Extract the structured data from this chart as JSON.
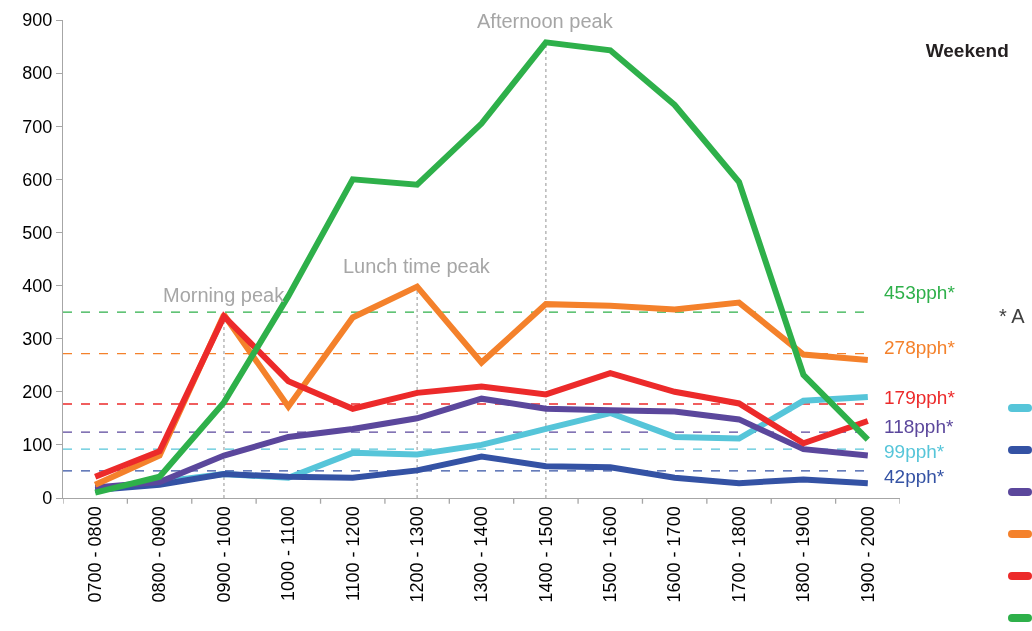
{
  "chart_data": {
    "type": "line",
    "title": "Weekend",
    "categories": [
      "0700 - 0800",
      "0800 - 0900",
      "0900 - 1000",
      "1000 - 1100",
      "1100 - 1200",
      "1200 - 1300",
      "1300 - 1400",
      "1400 - 1500",
      "1500 - 1600",
      "1600 - 1700",
      "1700 - 1800",
      "1800 - 1900",
      "1900 - 2000"
    ],
    "series": [
      {
        "color": "#56c5d9",
        "values": [
          15,
          30,
          45,
          38,
          85,
          82,
          100,
          130,
          160,
          115,
          112,
          183,
          190
        ]
      },
      {
        "color": "#3452a4",
        "values": [
          15,
          25,
          45,
          40,
          38,
          52,
          78,
          60,
          58,
          38,
          28,
          35,
          28
        ]
      },
      {
        "color": "#5b479c",
        "values": [
          20,
          30,
          80,
          115,
          130,
          150,
          187,
          168,
          165,
          163,
          148,
          92,
          80
        ]
      },
      {
        "color": "#f4812b",
        "values": [
          25,
          80,
          345,
          172,
          340,
          398,
          255,
          365,
          362,
          355,
          368,
          270,
          260
        ]
      },
      {
        "color": "#ec2a2a",
        "values": [
          40,
          88,
          342,
          220,
          168,
          198,
          210,
          195,
          235,
          200,
          178,
          103,
          145
        ]
      },
      {
        "color": "#2eb04a",
        "values": [
          10,
          40,
          180,
          380,
          600,
          590,
          705,
          858,
          843,
          740,
          595,
          232,
          110
        ]
      }
    ],
    "ylim": [
      0,
      900
    ],
    "yticks": [
      0,
      100,
      200,
      300,
      400,
      500,
      600,
      700,
      800,
      900
    ],
    "grid": false,
    "marker": "none",
    "line_style": "solid",
    "ref_lines": [
      {
        "axis": "y",
        "value": 350,
        "label": "453pph*",
        "color": "#2eb04a",
        "line_style": "dashed"
      },
      {
        "axis": "y",
        "value": 272,
        "label": "278pph*",
        "color": "#f4812b",
        "line_style": "dashed"
      },
      {
        "axis": "y",
        "value": 177,
        "label": "179pph*",
        "color": "#ec2a2a",
        "line_style": "dashed"
      },
      {
        "axis": "y",
        "value": 124,
        "label": "118pph*",
        "color": "#5b479c",
        "line_style": "dashed"
      },
      {
        "axis": "y",
        "value": 92,
        "label": "99pph*",
        "color": "#56c5d9",
        "line_style": "dashed"
      },
      {
        "axis": "y",
        "value": 51,
        "label": "42pph*",
        "color": "#3452a4",
        "line_style": "dashed"
      },
      {
        "axis": "x",
        "value": "0900 - 1000",
        "label": "Morning peak",
        "color": "#a6a6a6",
        "line_style": "dotted"
      },
      {
        "axis": "x",
        "value": "1200 - 1300",
        "label": "Lunch time peak",
        "color": "#a6a6a6",
        "line_style": "dotted"
      },
      {
        "axis": "x",
        "value": "1400 - 1500",
        "label": "Afternoon peak",
        "color": "#a6a6a6",
        "line_style": "dotted"
      }
    ],
    "annotations": [
      "* A"
    ]
  }
}
